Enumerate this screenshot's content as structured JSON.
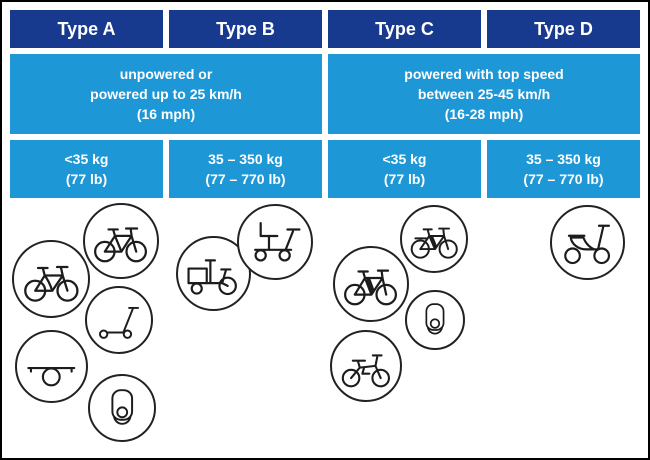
{
  "colors": {
    "header_bg": "#173a8e",
    "cell_bg": "#1e97d6",
    "cell_text": "#ffffff",
    "outline": "#000000"
  },
  "types": [
    {
      "label": "Type A"
    },
    {
      "label": "Type B"
    },
    {
      "label": "Type C"
    },
    {
      "label": "Type D"
    }
  ],
  "speed_groups": [
    {
      "text": "unpowered or\npowered up to 25 km/h\n(16 mph)"
    },
    {
      "text": "powered with top speed\nbetween 25-45 km/h\n(16-28 mph)"
    }
  ],
  "weight_limits": [
    {
      "text": "<35 kg\n(77 lb)"
    },
    {
      "text": "35 – 350 kg\n(77 – 770 lb)"
    },
    {
      "text": "<35 kg\n(77 lb)"
    },
    {
      "text": "35 – 350 kg\n(77 – 770 lb)"
    }
  ],
  "vehicle_icons": {
    "type_a": [
      "mountain-bike-icon",
      "city-bike-icon",
      "kick-scooter-icon",
      "onewheel-icon",
      "electric-unicycle-icon"
    ],
    "type_b": [
      "cargo-bike-icon",
      "mobility-scooter-icon"
    ],
    "type_c": [
      "e-bike-icon",
      "e-mountain-bike-icon",
      "electric-unicycle-icon",
      "e-moped-icon"
    ],
    "type_d": [
      "moped-scooter-icon"
    ]
  }
}
